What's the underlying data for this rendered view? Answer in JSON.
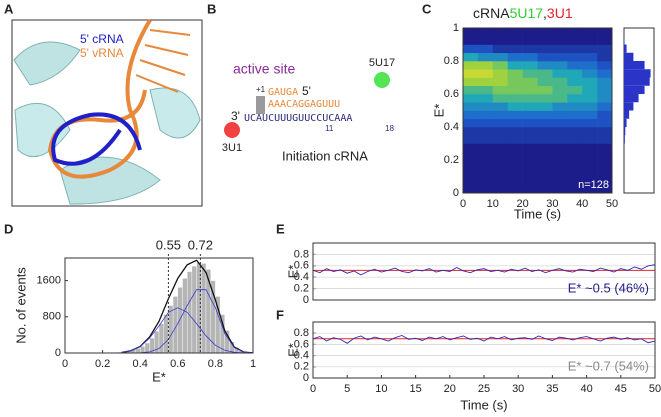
{
  "panel_labels": [
    "A",
    "B",
    "C",
    "D",
    "E",
    "F"
  ],
  "panel_a": {
    "label_crna": "5' cRNA",
    "label_vrna": "5' vRNA"
  },
  "panel_b": {
    "active_site": "active site",
    "plus1": "+1",
    "five_prime": "5'",
    "three_prime": "3'",
    "vrna_top": "GAUGA",
    "vrna_bottom": "AAACA",
    "vrna_tail": "GGAGUUU",
    "crna": "UCAUCUUUGUUCCUCAAA",
    "pos11": "11",
    "pos18": "18",
    "label_5u17": "5U17",
    "label_3u1": "3U1",
    "caption": "Initiation cRNA"
  },
  "chart_data": [
    {
      "type": "heatmap",
      "title": [
        "cRNA",
        "5U17",
        ",",
        "3U1"
      ],
      "title_colors": [
        "#222222",
        "#33cc33",
        "#222222",
        "#e8202a"
      ],
      "xlabel": "Time (s)",
      "ylabel": "E*",
      "annotation": "n=128",
      "xlim": [
        0,
        50
      ],
      "ylim": [
        0,
        1
      ],
      "xticks": [
        0,
        10,
        20,
        30,
        40,
        50
      ],
      "yticks": [
        0,
        0.2,
        0.4,
        0.6,
        0.8,
        1
      ],
      "x_bins": [
        0,
        5,
        10,
        15,
        20,
        25,
        30,
        35,
        40,
        45,
        50
      ],
      "y_bins": [
        0,
        0.05,
        0.1,
        0.15,
        0.2,
        0.25,
        0.3,
        0.35,
        0.4,
        0.45,
        0.5,
        0.55,
        0.6,
        0.65,
        0.7,
        0.75,
        0.8,
        0.85,
        0.9,
        0.95,
        1
      ],
      "zlim": [
        0,
        10
      ],
      "colormap": [
        "#1c1c8a",
        "#1f5fd0",
        "#20a8b8",
        "#8ccf45",
        "#f2e027"
      ],
      "z": [
        [
          0,
          0,
          0,
          0,
          0,
          0,
          0,
          0,
          0,
          0
        ],
        [
          0,
          0,
          0,
          0,
          0,
          0,
          0,
          0,
          0,
          0
        ],
        [
          0,
          0,
          0,
          0,
          0,
          0,
          0,
          0,
          0,
          0
        ],
        [
          0,
          0,
          0,
          0,
          0,
          0,
          0,
          0,
          0,
          0
        ],
        [
          0,
          0,
          0,
          0,
          0,
          0,
          0,
          0,
          0,
          0
        ],
        [
          0,
          0,
          0,
          0,
          0,
          0,
          0,
          0,
          0,
          0
        ],
        [
          1,
          1,
          1,
          1,
          1,
          1,
          1,
          1,
          1,
          1
        ],
        [
          1,
          1,
          1,
          1,
          1,
          1,
          1,
          1,
          1,
          1
        ],
        [
          2,
          2,
          2,
          2,
          2,
          2,
          2,
          2,
          2,
          2
        ],
        [
          3,
          3,
          3,
          3,
          3,
          3,
          3,
          3,
          3,
          2
        ],
        [
          4,
          4,
          4,
          5,
          5,
          5,
          4,
          4,
          4,
          3
        ],
        [
          5,
          5,
          6,
          6,
          6,
          6,
          6,
          5,
          5,
          4
        ],
        [
          6,
          6,
          7,
          7,
          7,
          7,
          6,
          6,
          5,
          4
        ],
        [
          8,
          8,
          8,
          7,
          7,
          6,
          6,
          5,
          5,
          4
        ],
        [
          9,
          9,
          8,
          7,
          6,
          6,
          5,
          5,
          4,
          3
        ],
        [
          8,
          8,
          7,
          5,
          5,
          4,
          4,
          3,
          3,
          2
        ],
        [
          5,
          4,
          4,
          3,
          3,
          2,
          2,
          2,
          2,
          1
        ],
        [
          2,
          2,
          1,
          1,
          1,
          1,
          1,
          1,
          1,
          1
        ],
        [
          0,
          0,
          0,
          0,
          0,
          0,
          0,
          0,
          0,
          0
        ],
        [
          0,
          0,
          0,
          0,
          0,
          0,
          0,
          0,
          0,
          0
        ]
      ],
      "side_values": [
        0,
        0,
        0,
        0,
        0,
        0,
        2,
        3,
        6,
        12,
        22,
        34,
        48,
        60,
        62,
        48,
        22,
        6,
        1,
        0
      ],
      "side_xlim": [
        0,
        70
      ],
      "side_color": "#2a35c8"
    },
    {
      "type": "histogram",
      "xlabel": "E*",
      "ylabel": "No. of events",
      "xlim": [
        0,
        1
      ],
      "ylim": [
        0,
        2100
      ],
      "xticks": [
        0,
        0.2,
        0.4,
        0.6,
        0.8,
        1
      ],
      "yticks": [
        0,
        800,
        1600
      ],
      "color": "#b5b5b5",
      "bins": [
        0.25,
        0.275,
        0.3,
        0.325,
        0.35,
        0.375,
        0.4,
        0.425,
        0.45,
        0.475,
        0.5,
        0.525,
        0.55,
        0.575,
        0.6,
        0.625,
        0.65,
        0.675,
        0.7,
        0.725,
        0.75,
        0.775,
        0.8,
        0.825,
        0.85,
        0.875,
        0.9,
        0.925,
        0.95
      ],
      "values": [
        10,
        20,
        30,
        50,
        70,
        100,
        150,
        220,
        330,
        480,
        650,
        850,
        1050,
        1250,
        1450,
        1650,
        1800,
        1920,
        2000,
        1980,
        1850,
        1600,
        1250,
        850,
        500,
        250,
        120,
        50
      ],
      "curve_x": [
        0.3,
        0.35,
        0.4,
        0.45,
        0.5,
        0.55,
        0.6,
        0.65,
        0.7,
        0.75,
        0.8,
        0.85,
        0.9,
        0.95,
        1
      ],
      "curves": [
        {
          "color": "#111111",
          "values": [
            10,
            50,
            145,
            355,
            700,
            1200,
            1650,
            1950,
            2050,
            1780,
            1170,
            490,
            135,
            23,
            2
          ]
        },
        {
          "color": "#3a3ad0",
          "values": [
            10,
            50,
            140,
            330,
            600,
            900,
            1000,
            900,
            650,
            380,
            170,
            60,
            15,
            3,
            0
          ]
        },
        {
          "color": "#3a3ad0",
          "values": [
            0,
            0,
            5,
            25,
            100,
            300,
            650,
            1050,
            1400,
            1400,
            1000,
            430,
            120,
            20,
            2
          ]
        }
      ],
      "markers": [
        {
          "value": 0.55,
          "label": "0.55"
        },
        {
          "value": 0.72,
          "label": "0.72"
        }
      ]
    },
    {
      "type": "line",
      "ylabel": "E*",
      "xlim": [
        0,
        50
      ],
      "ylim": [
        0,
        1
      ],
      "yticks": [
        0,
        0.2,
        0.4,
        0.6,
        0.8
      ],
      "grid": true,
      "annotation": "E* ~0.5 (46%)",
      "annotation_color": "#1c1c8a",
      "x": [
        0,
        1,
        2,
        3,
        4,
        5,
        6,
        7,
        8,
        9,
        10,
        11,
        12,
        13,
        14,
        15,
        16,
        17,
        18,
        19,
        20,
        21,
        22,
        23,
        24,
        25,
        26,
        27,
        28,
        29,
        30,
        31,
        32,
        33,
        34,
        35,
        36,
        37,
        38,
        39,
        40,
        41,
        42,
        43,
        44,
        45,
        46,
        47,
        48,
        49,
        50
      ],
      "series": [
        {
          "color": "#2b2bb0",
          "values": [
            0.52,
            0.48,
            0.55,
            0.5,
            0.53,
            0.47,
            0.51,
            0.44,
            0.5,
            0.54,
            0.49,
            0.52,
            0.56,
            0.5,
            0.48,
            0.53,
            0.51,
            0.55,
            0.49,
            0.52,
            0.5,
            0.57,
            0.51,
            0.48,
            0.53,
            0.55,
            0.5,
            0.52,
            0.49,
            0.54,
            0.51,
            0.56,
            0.5,
            0.53,
            0.48,
            0.52,
            0.55,
            0.51,
            0.49,
            0.54,
            0.52,
            0.5,
            0.56,
            0.53,
            0.49,
            0.55,
            0.52,
            0.58,
            0.54,
            0.6,
            0.62
          ]
        }
      ],
      "fit": {
        "color": "#e8202a",
        "value": 0.52
      }
    },
    {
      "type": "line",
      "ylabel": "E*",
      "xlabel": "Time (s)",
      "xlim": [
        0,
        50
      ],
      "ylim": [
        0,
        1
      ],
      "yticks": [
        0,
        0.2,
        0.4,
        0.6,
        0.8
      ],
      "xticks": [
        0,
        5,
        10,
        15,
        20,
        25,
        30,
        35,
        40,
        45,
        50
      ],
      "grid": true,
      "annotation": "E* ~0.7 (54%)",
      "annotation_color": "#8a8a8a",
      "x": [
        0,
        1,
        2,
        3,
        4,
        5,
        6,
        7,
        8,
        9,
        10,
        11,
        12,
        13,
        14,
        15,
        16,
        17,
        18,
        19,
        20,
        21,
        22,
        23,
        24,
        25,
        26,
        27,
        28,
        29,
        30,
        31,
        32,
        33,
        34,
        35,
        36,
        37,
        38,
        39,
        40,
        41,
        42,
        43,
        44,
        45,
        46,
        47,
        48,
        49,
        50
      ],
      "series": [
        {
          "color": "#2b2bb0",
          "values": [
            0.7,
            0.74,
            0.66,
            0.72,
            0.69,
            0.62,
            0.71,
            0.75,
            0.68,
            0.73,
            0.7,
            0.66,
            0.72,
            0.76,
            0.69,
            0.71,
            0.67,
            0.73,
            0.7,
            0.74,
            0.68,
            0.72,
            0.75,
            0.69,
            0.71,
            0.66,
            0.73,
            0.7,
            0.74,
            0.68,
            0.71,
            0.72,
            0.69,
            0.75,
            0.7,
            0.67,
            0.73,
            0.71,
            0.68,
            0.72,
            0.74,
            0.7,
            0.66,
            0.71,
            0.73,
            0.69,
            0.72,
            0.68,
            0.7,
            0.63,
            0.66
          ]
        }
      ],
      "fit": {
        "color": "#e8202a",
        "value": 0.7
      }
    }
  ]
}
